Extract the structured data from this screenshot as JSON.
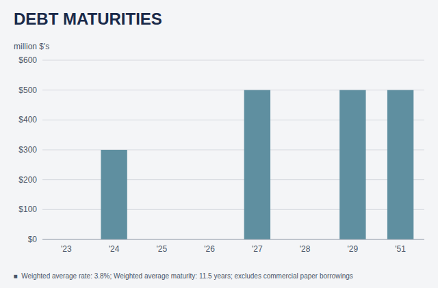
{
  "chart_data": {
    "type": "bar",
    "title": "DEBT MATURITIES",
    "ylabel": "million $'s",
    "annotations": [
      "  ■  Weighted average rate: 3.8%; Weighted average maturity: 11.5 years; excludes commercial paper borrowings"
    ],
    "categories": [
      "'23",
      "'24",
      "'25",
      "'26",
      "'27",
      "'28",
      "'29",
      "'51"
    ],
    "values": [
      0,
      300,
      0,
      0,
      500,
      0,
      500,
      500
    ],
    "color": "#5f8fa0",
    "ylim": [
      0,
      600
    ],
    "yticks": [
      {
        "value": 0,
        "label": "$0"
      },
      {
        "value": 100,
        "label": "$100"
      },
      {
        "value": 200,
        "label": "$200"
      },
      {
        "value": 300,
        "label": "$300"
      },
      {
        "value": 400,
        "label": "$400"
      },
      {
        "value": 500,
        "label": "$500"
      },
      {
        "value": 600,
        "label": "$600"
      }
    ],
    "grid": true
  }
}
